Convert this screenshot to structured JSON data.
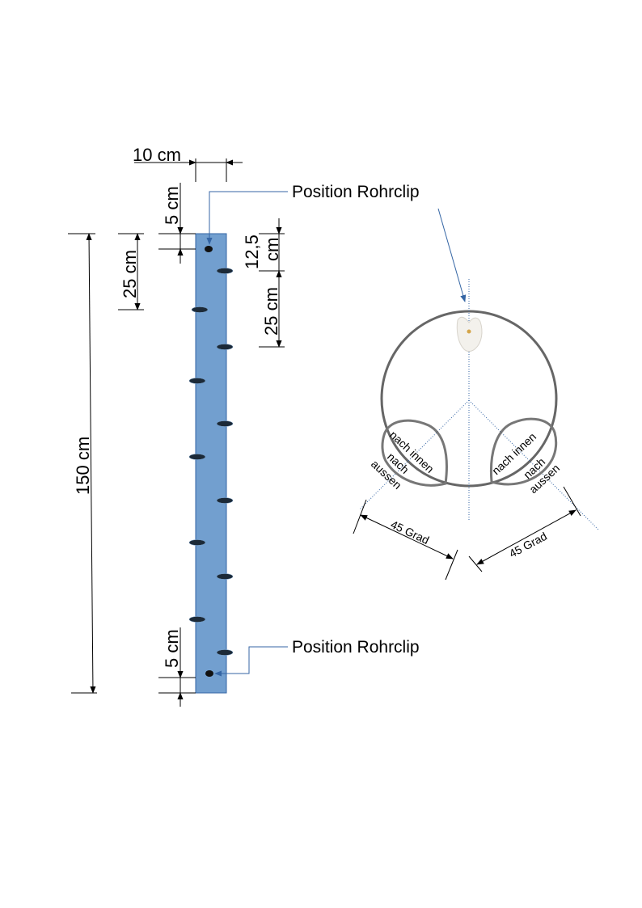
{
  "labels": {
    "width": "10 cm",
    "top_offset": "5 cm",
    "spacing_left": "25 cm",
    "total_length": "150 cm",
    "offset_right_value": "12,5",
    "offset_right_unit": "cm",
    "spacing_right": "25 cm",
    "bottom_offset": "5 cm",
    "clip_top": "Position Rohrclip",
    "clip_bottom": "Position Rohrclip",
    "inner_left": "nach innen",
    "outer_left_1": "nach",
    "outer_left_2": "aussen",
    "inner_right": "nach innen",
    "outer_right_1": "nach",
    "outer_right_2": "aussen",
    "angle_left": "45 Grad",
    "angle_right": "45 Grad"
  },
  "colors": {
    "pipe_fill": "#729fcf",
    "pipe_stroke": "#3465a4",
    "hole": "#1c2a38",
    "arrow_blue": "#3465a4",
    "circle_stroke": "#666666"
  }
}
